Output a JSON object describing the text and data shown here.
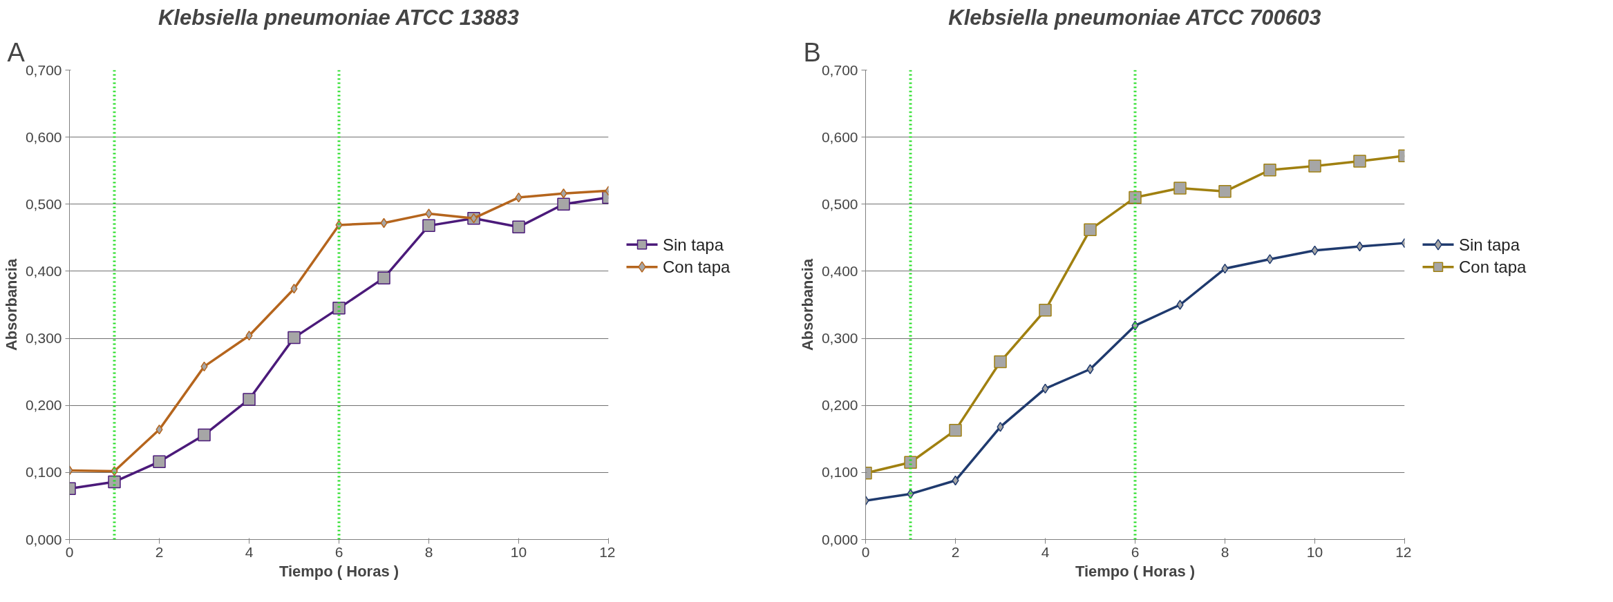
{
  "chart_data": [
    {
      "type": "line",
      "title": "Klebsiella pneumoniae ATCC 13883",
      "xlabel": "Tiempo ( Horas )",
      "ylabel": "Absorbancia",
      "annotations": [
        "A"
      ],
      "x": [
        0,
        1,
        2,
        3,
        4,
        5,
        6,
        7,
        8,
        9,
        10,
        11,
        12
      ],
      "xlim": [
        0,
        12
      ],
      "xticks": [
        0,
        2,
        4,
        6,
        8,
        10,
        12
      ],
      "ylim": [
        0,
        0.7
      ],
      "yticks": [
        {
          "value": 0,
          "label": "0,000"
        },
        {
          "value": 0.1,
          "label": "0,100"
        },
        {
          "value": 0.2,
          "label": "0,200"
        },
        {
          "value": 0.3,
          "label": "0,300"
        },
        {
          "value": 0.4,
          "label": "0,400"
        },
        {
          "value": 0.5,
          "label": "0,500"
        },
        {
          "value": 0.6,
          "label": "0,600"
        },
        {
          "value": 0.7,
          "label": "0,700"
        }
      ],
      "grid": "y",
      "legend": "right",
      "ref_lines": [
        {
          "axis": "x",
          "value": 1,
          "color": "#22dd22",
          "line_style": "dotted"
        },
        {
          "axis": "x",
          "value": 6,
          "color": "#22dd22",
          "line_style": "dotted"
        }
      ],
      "series": [
        {
          "name": "Sin tapa",
          "color": "#4b1a7a",
          "marker": "square",
          "values": [
            0.076,
            0.086,
            0.116,
            0.156,
            0.209,
            0.301,
            0.345,
            0.39,
            0.468,
            0.479,
            0.466,
            0.5,
            0.51
          ]
        },
        {
          "name": "Con tapa",
          "color": "#b5651d",
          "marker": "diamond",
          "values": [
            0.103,
            0.102,
            0.164,
            0.258,
            0.304,
            0.374,
            0.469,
            0.472,
            0.486,
            0.479,
            0.51,
            0.516,
            0.52
          ]
        }
      ]
    },
    {
      "type": "line",
      "title": "Klebsiella pneumoniae ATCC 700603",
      "xlabel": "Tiempo ( Horas )",
      "ylabel": "Absorbancia",
      "annotations": [
        "B"
      ],
      "x": [
        0,
        1,
        2,
        3,
        4,
        5,
        6,
        7,
        8,
        9,
        10,
        11,
        12
      ],
      "xlim": [
        0,
        12
      ],
      "xticks": [
        0,
        2,
        4,
        6,
        8,
        10,
        12
      ],
      "ylim": [
        0,
        0.7
      ],
      "yticks": [
        {
          "value": 0,
          "label": "0,000"
        },
        {
          "value": 0.1,
          "label": "0,100"
        },
        {
          "value": 0.2,
          "label": "0,200"
        },
        {
          "value": 0.3,
          "label": "0,300"
        },
        {
          "value": 0.4,
          "label": "0,400"
        },
        {
          "value": 0.5,
          "label": "0,500"
        },
        {
          "value": 0.6,
          "label": "0,600"
        },
        {
          "value": 0.7,
          "label": "0,700"
        }
      ],
      "grid": "y",
      "legend": "right",
      "ref_lines": [
        {
          "axis": "x",
          "value": 1,
          "color": "#22dd22",
          "line_style": "dotted"
        },
        {
          "axis": "x",
          "value": 6,
          "color": "#22dd22",
          "line_style": "dotted"
        }
      ],
      "series": [
        {
          "name": "Sin tapa",
          "color": "#1f3a6e",
          "marker": "diamond",
          "values": [
            0.058,
            0.068,
            0.088,
            0.168,
            0.225,
            0.254,
            0.319,
            0.35,
            0.404,
            0.418,
            0.431,
            0.437,
            0.442
          ]
        },
        {
          "name": "Con tapa",
          "color": "#a08010",
          "marker": "square",
          "values": [
            0.099,
            0.115,
            0.163,
            0.265,
            0.342,
            0.462,
            0.51,
            0.524,
            0.519,
            0.551,
            0.557,
            0.564,
            0.572
          ]
        }
      ]
    }
  ]
}
